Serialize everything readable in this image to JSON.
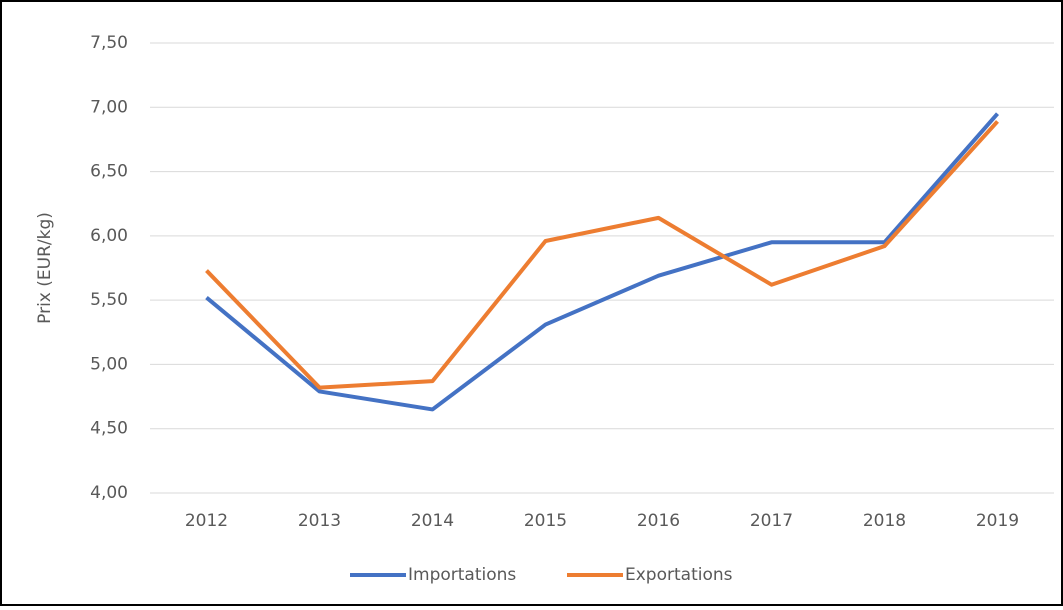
{
  "chart_data": {
    "type": "line",
    "y_label": "Prix (EUR/kg)",
    "categories": [
      "2012",
      "2013",
      "2014",
      "2015",
      "2016",
      "2017",
      "2018",
      "2019"
    ],
    "series": [
      {
        "name": "Importations",
        "color": "#4472c4",
        "values": [
          5.52,
          4.79,
          4.65,
          5.31,
          5.69,
          5.95,
          5.95,
          6.95
        ]
      },
      {
        "name": "Exportations",
        "color": "#ed7d31",
        "values": [
          5.73,
          4.82,
          4.87,
          5.96,
          6.14,
          5.62,
          5.92,
          6.89
        ]
      }
    ],
    "ylim": [
      4,
      7.5
    ],
    "yticks": [
      {
        "value": 4,
        "label": "4,00"
      },
      {
        "value": 4.5,
        "label": "4,50"
      },
      {
        "value": 5,
        "label": "5,00"
      },
      {
        "value": 5.5,
        "label": "5,50"
      },
      {
        "value": 6,
        "label": "6,00"
      },
      {
        "value": 6.5,
        "label": "6,50"
      },
      {
        "value": 7,
        "label": "7,00"
      },
      {
        "value": 7.5,
        "label": "7,50"
      }
    ],
    "grid": true,
    "legend": "bottom"
  }
}
